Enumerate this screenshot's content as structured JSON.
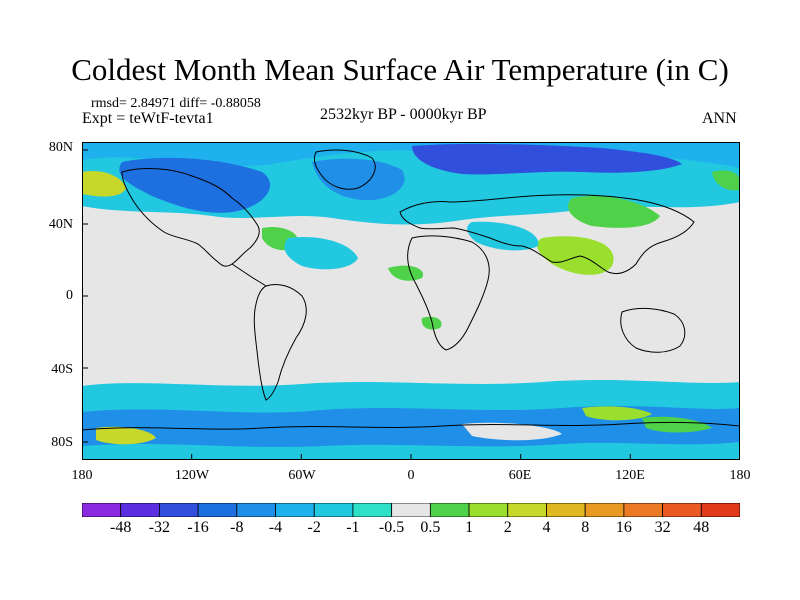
{
  "title": "Coldest Month Mean Surface Air Temperature (in C)",
  "stats": "rmsd= 2.84971 diff= -0.88058",
  "experiment": "Expt = teWtF-tevta1",
  "period": "2532kyr BP - 0000kyr BP",
  "season": "ANN",
  "lat_labels": [
    "80N",
    "40N",
    "0",
    "40S",
    "80S"
  ],
  "lon_labels": [
    "180",
    "120W",
    "60W",
    "0",
    "60E",
    "120E",
    "180"
  ],
  "colorbar": {
    "labels": [
      "-48",
      "-32",
      "-16",
      "-8",
      "-4",
      "-2",
      "-1",
      "-0.5",
      "0.5",
      "1",
      "2",
      "4",
      "8",
      "16",
      "32",
      "48"
    ],
    "colors": [
      "#8a2be2",
      "#5b2ee0",
      "#2f4fdc",
      "#1e6fe0",
      "#1f8fe8",
      "#1fb0ee",
      "#22c8e0",
      "#2ee0c6",
      "#e6e6e6",
      "#4fd24a",
      "#9adf2e",
      "#c8d82a",
      "#e0b820",
      "#e89a22",
      "#ec7a24",
      "#ea5a22",
      "#e03a1a"
    ]
  },
  "palette": {
    "neutral": "#e6e6e6",
    "cold_strong": "#2f4fdc",
    "cold_mid": "#1f8fe8",
    "cold_light": "#1fb0ee",
    "cold_pale": "#22c8e0",
    "cool_teal": "#2ee0c6",
    "warm_green": "#4fd24a",
    "warm_lime": "#9adf2e",
    "warm_yellow": "#c8d82a",
    "warm_orange": "#e0b820"
  }
}
